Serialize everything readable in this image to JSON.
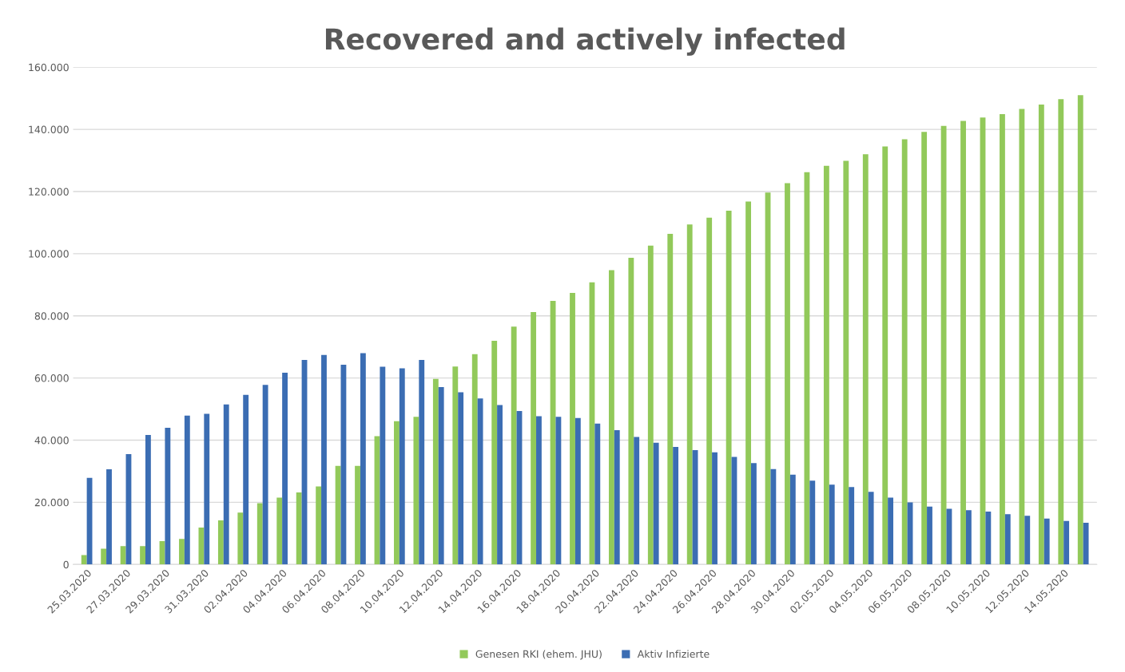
{
  "chart_data": {
    "type": "bar",
    "title": "Recovered and actively infected",
    "categories": [
      "25.03.2020",
      null,
      "27.03.2020",
      null,
      "29.03.2020",
      null,
      "31.03.2020",
      null,
      "02.04.2020",
      null,
      "04.04.2020",
      null,
      "06.04.2020",
      null,
      "08.04.2020",
      null,
      "10.04.2020",
      null,
      "12.04.2020",
      null,
      "14.04.2020",
      null,
      "16.04.2020",
      null,
      "18.04.2020",
      null,
      "20.04.2020",
      null,
      "22.04.2020",
      null,
      "24.04.2020",
      null,
      "26.04.2020",
      null,
      "28.04.2020",
      null,
      "30.04.2020",
      null,
      "02.05.2020",
      null,
      "04.05.2020",
      null,
      "06.05.2020",
      null,
      "08.05.2020",
      null,
      "10.05.2020",
      null,
      "12.05.2020",
      null,
      "14.05.2020",
      null
    ],
    "series": [
      {
        "name": "Genesen RKI (ehem. JHU)",
        "color": "#92c95a",
        "values": [
          3000,
          5100,
          5900,
          5900,
          7500,
          8200,
          11900,
          14200,
          16700,
          19700,
          21500,
          23200,
          25100,
          31700,
          31700,
          41300,
          46100,
          47500,
          59700,
          63700,
          67700,
          72000,
          76500,
          81200,
          84800,
          87400,
          90800,
          94700,
          98700,
          102600,
          106400,
          109400,
          111600,
          113800,
          116800,
          119700,
          122700,
          126200,
          128300,
          129900,
          132000,
          134500,
          136800,
          139200,
          141100,
          142700,
          143800,
          144900,
          146600,
          148000,
          149700,
          151000
        ]
      },
      {
        "name": "Aktiv Infizierte",
        "color": "#3b6db3",
        "values": [
          27900,
          30600,
          35500,
          41700,
          44000,
          47900,
          48500,
          51500,
          54600,
          57800,
          61700,
          65800,
          67400,
          64300,
          68000,
          63600,
          63100,
          65800,
          57100,
          55400,
          53400,
          51300,
          49400,
          47700,
          47500,
          47100,
          45300,
          43200,
          41000,
          39200,
          37800,
          36800,
          36100,
          34600,
          32600,
          30700,
          28900,
          27000,
          25700,
          24900,
          23400,
          21500,
          20000,
          18600,
          17900,
          17500,
          17000,
          16200,
          15700,
          14800,
          14000,
          13400
        ]
      }
    ],
    "ylim": [
      0,
      160000
    ],
    "yticks": [
      {
        "value": 0,
        "label": "0"
      },
      {
        "value": 20000,
        "label": "20.000"
      },
      {
        "value": 40000,
        "label": "40.000"
      },
      {
        "value": 60000,
        "label": "60.000"
      },
      {
        "value": 80000,
        "label": "80.000"
      },
      {
        "value": 100000,
        "label": "100.000"
      },
      {
        "value": 120000,
        "label": "120.000"
      },
      {
        "value": 140000,
        "label": "140.000"
      },
      {
        "value": 160000,
        "label": "160.000"
      }
    ],
    "grid": "y",
    "legend": "bottom"
  }
}
